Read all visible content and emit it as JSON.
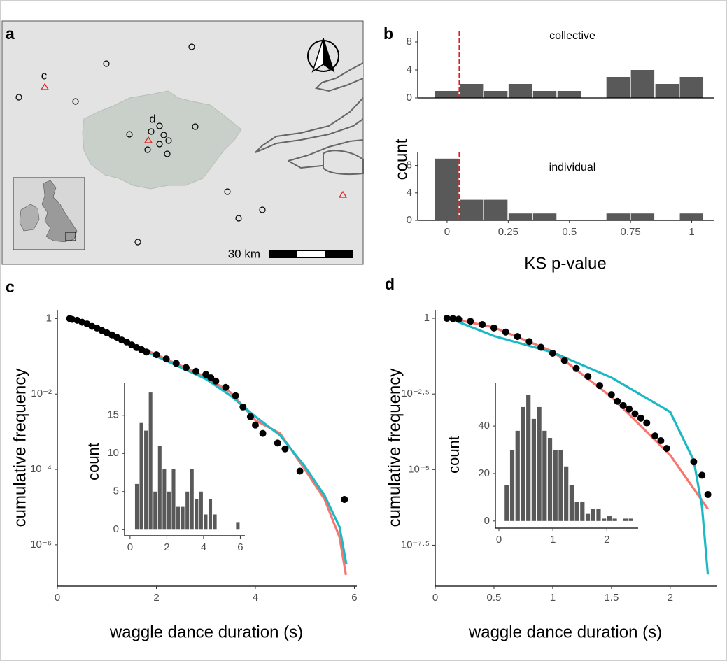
{
  "map": {
    "label": "a",
    "sites": [
      "c",
      "d"
    ],
    "scale": "30 km"
  },
  "chart_data": [
    {
      "type": "histogram",
      "title": "b",
      "annotation": "collective",
      "y_label": "count",
      "bins": [
        -0.05,
        0.05,
        0.15,
        0.25,
        0.35,
        0.45,
        0.55,
        0.65,
        0.75,
        0.85,
        0.95,
        1.05
      ],
      "values": [
        1,
        2,
        1,
        2,
        1,
        1,
        0,
        3,
        4,
        2,
        3
      ],
      "color": "#595959",
      "xlim": [
        -0.12,
        1.09
      ],
      "ylim": [
        0,
        9.5
      ],
      "yticks": [
        0,
        4,
        8
      ],
      "reference_line": 0.05,
      "reference_color": "#e41a1c"
    },
    {
      "type": "histogram",
      "annotation": "individual",
      "x_label": "KS p-value",
      "bins": [
        -0.05,
        0.05,
        0.15,
        0.25,
        0.35,
        0.45,
        0.55,
        0.65,
        0.75,
        0.85,
        0.95,
        1.05
      ],
      "values": [
        9,
        3,
        3,
        1,
        1,
        0,
        0,
        1,
        1,
        0,
        1
      ],
      "color": "#595959",
      "xlim": [
        -0.12,
        1.09
      ],
      "ylim": [
        0,
        9.9
      ],
      "yticks": [
        0,
        4,
        8
      ],
      "xticks": [
        0,
        0.25,
        0.5,
        0.75,
        1
      ],
      "reference_line": 0.05,
      "reference_color": "#e41a1c"
    },
    {
      "type": "scatter",
      "title": "c",
      "x_label": "waggle dance duration (s)",
      "y_label": "cumulative frequency",
      "log_y": true,
      "xlim": [
        0,
        6.05
      ],
      "ylim": [
        8e-08,
        1.7
      ],
      "xticks": [
        0,
        2,
        4,
        6
      ],
      "yticks": [
        1,
        {
          "value": 0.01,
          "label": "10⁻²"
        },
        {
          "value": 0.0001,
          "label": "10⁻⁴"
        },
        {
          "value": 1e-06,
          "label": "10⁻⁶"
        }
      ],
      "points": {
        "color": "#000000",
        "x": [
          0.25,
          0.3,
          0.4,
          0.5,
          0.6,
          0.7,
          0.8,
          0.9,
          1.0,
          1.1,
          1.2,
          1.3,
          1.4,
          1.5,
          1.6,
          1.7,
          1.8,
          2.0,
          2.2,
          2.4,
          2.6,
          2.8,
          3.0,
          3.1,
          3.2,
          3.4,
          3.6,
          3.75,
          3.9,
          4.0,
          4.15,
          4.45,
          4.6,
          4.9,
          5.8
        ],
        "values": [
          1,
          0.95,
          0.9,
          0.8,
          0.72,
          0.62,
          0.56,
          0.48,
          0.42,
          0.37,
          0.32,
          0.27,
          0.24,
          0.2,
          0.17,
          0.15,
          0.13,
          0.11,
          0.085,
          0.065,
          0.05,
          0.04,
          0.033,
          0.027,
          0.022,
          0.015,
          0.009,
          0.0045,
          0.0025,
          0.0015,
          0.0009,
          0.0005,
          0.00035,
          9e-05,
          1.6e-05
        ]
      },
      "lines": [
        {
          "color": "#f8766d",
          "x": [
            0.3,
            1,
            2,
            3,
            3.5,
            4,
            4.5,
            5,
            5.4,
            5.7,
            5.83
          ],
          "values": [
            1,
            0.42,
            0.11,
            0.028,
            0.011,
            0.002,
            0.0009,
            0.0001,
            1.6e-05,
            1.6e-06,
            1.6e-07
          ]
        },
        {
          "color": "#1cb9c5",
          "x": [
            0.3,
            1,
            2,
            3,
            3.5,
            4,
            4.5,
            5,
            5.4,
            5.7,
            5.84
          ],
          "values": [
            1,
            0.4,
            0.1,
            0.025,
            0.009,
            0.0025,
            0.0008,
            0.00012,
            2e-05,
            3e-06,
            3e-07
          ]
        }
      ]
    },
    {
      "type": "histogram",
      "y_label": "count",
      "bins": [
        0.25,
        0.5,
        0.75,
        1.0,
        1.25,
        1.5,
        1.75,
        2.0,
        2.25,
        2.5,
        2.75,
        3.0,
        3.25,
        3.5,
        3.75,
        4.0,
        4.25,
        4.5,
        4.75,
        5.0,
        5.25,
        5.5,
        5.75,
        6.0
      ],
      "values": [
        6,
        14,
        13,
        18,
        5,
        11,
        8,
        5,
        8,
        3,
        3,
        5,
        8,
        4,
        5,
        2,
        4,
        2,
        0,
        0,
        0,
        0,
        1
      ],
      "color": "#595959",
      "xlim": [
        -0.3,
        6.25
      ],
      "ylim": [
        -0.8,
        19.2
      ],
      "xticks": [
        0,
        2,
        4,
        6
      ],
      "yticks": [
        0,
        5,
        10,
        15
      ]
    },
    {
      "type": "scatter",
      "title": "d",
      "x_label": "waggle dance duration (s)",
      "y_label": "cumulative frequency",
      "log_y": true,
      "xlim": [
        0,
        2.4
      ],
      "ylim": [
        1.4e-09,
        1.9
      ],
      "xticks": [
        0,
        0.5,
        1,
        1.5,
        2
      ],
      "yticks": [
        1,
        {
          "value": 0.0031623,
          "label": "10⁻²·⁵"
        },
        {
          "value": 1e-05,
          "label": "10⁻⁵"
        },
        {
          "value": 3.1623e-08,
          "label": "10⁻⁷·⁵"
        }
      ],
      "points": {
        "color": "#000000",
        "x": [
          0.1,
          0.15,
          0.2,
          0.3,
          0.4,
          0.5,
          0.6,
          0.7,
          0.8,
          0.9,
          1.0,
          1.1,
          1.2,
          1.3,
          1.4,
          1.5,
          1.55,
          1.6,
          1.65,
          1.7,
          1.75,
          1.8,
          1.87,
          1.92,
          1.97,
          2.2,
          2.27,
          2.32
        ],
        "values": [
          1,
          0.98,
          0.93,
          0.8,
          0.62,
          0.48,
          0.35,
          0.25,
          0.17,
          0.11,
          0.07,
          0.04,
          0.022,
          0.012,
          0.006,
          0.003,
          0.0018,
          0.0013,
          0.001,
          0.0007,
          0.0005,
          0.00035,
          0.00013,
          9e-05,
          5e-05,
          1.8e-05,
          6.5e-06,
          1.5e-06
        ]
      },
      "lines": [
        {
          "color": "#f8766d",
          "x": [
            0.12,
            0.5,
            1,
            1.5,
            2,
            2.32
          ],
          "values": [
            1,
            0.5,
            0.08,
            0.0025,
            3e-05,
            5e-07
          ]
        },
        {
          "color": "#1cb9c5",
          "x": [
            0.12,
            0.5,
            1,
            1.5,
            2,
            2.2,
            2.27,
            2.32
          ],
          "values": [
            1,
            0.26,
            0.075,
            0.011,
            0.0008,
            2e-05,
            6e-07,
            3.4e-09
          ]
        }
      ]
    },
    {
      "type": "histogram",
      "y_label": "count",
      "bins": [
        0.1,
        0.2,
        0.3,
        0.4,
        0.5,
        0.6,
        0.7,
        0.8,
        0.9,
        1.0,
        1.1,
        1.2,
        1.3,
        1.4,
        1.5,
        1.6,
        1.7,
        1.8,
        1.9,
        2.0,
        2.1,
        2.2,
        2.3,
        2.4,
        2.5
      ],
      "values": [
        15,
        30,
        38,
        48,
        53,
        43,
        48,
        38,
        35,
        30,
        30,
        23,
        15,
        8,
        8,
        3,
        5,
        5,
        1,
        2,
        1,
        0,
        1,
        1
      ],
      "color": "#595959",
      "xlim": [
        -0.065,
        2.58
      ],
      "ylim": [
        -3,
        58
      ],
      "xticks": [
        0,
        1,
        2
      ],
      "yticks": [
        0,
        20,
        40
      ]
    }
  ]
}
